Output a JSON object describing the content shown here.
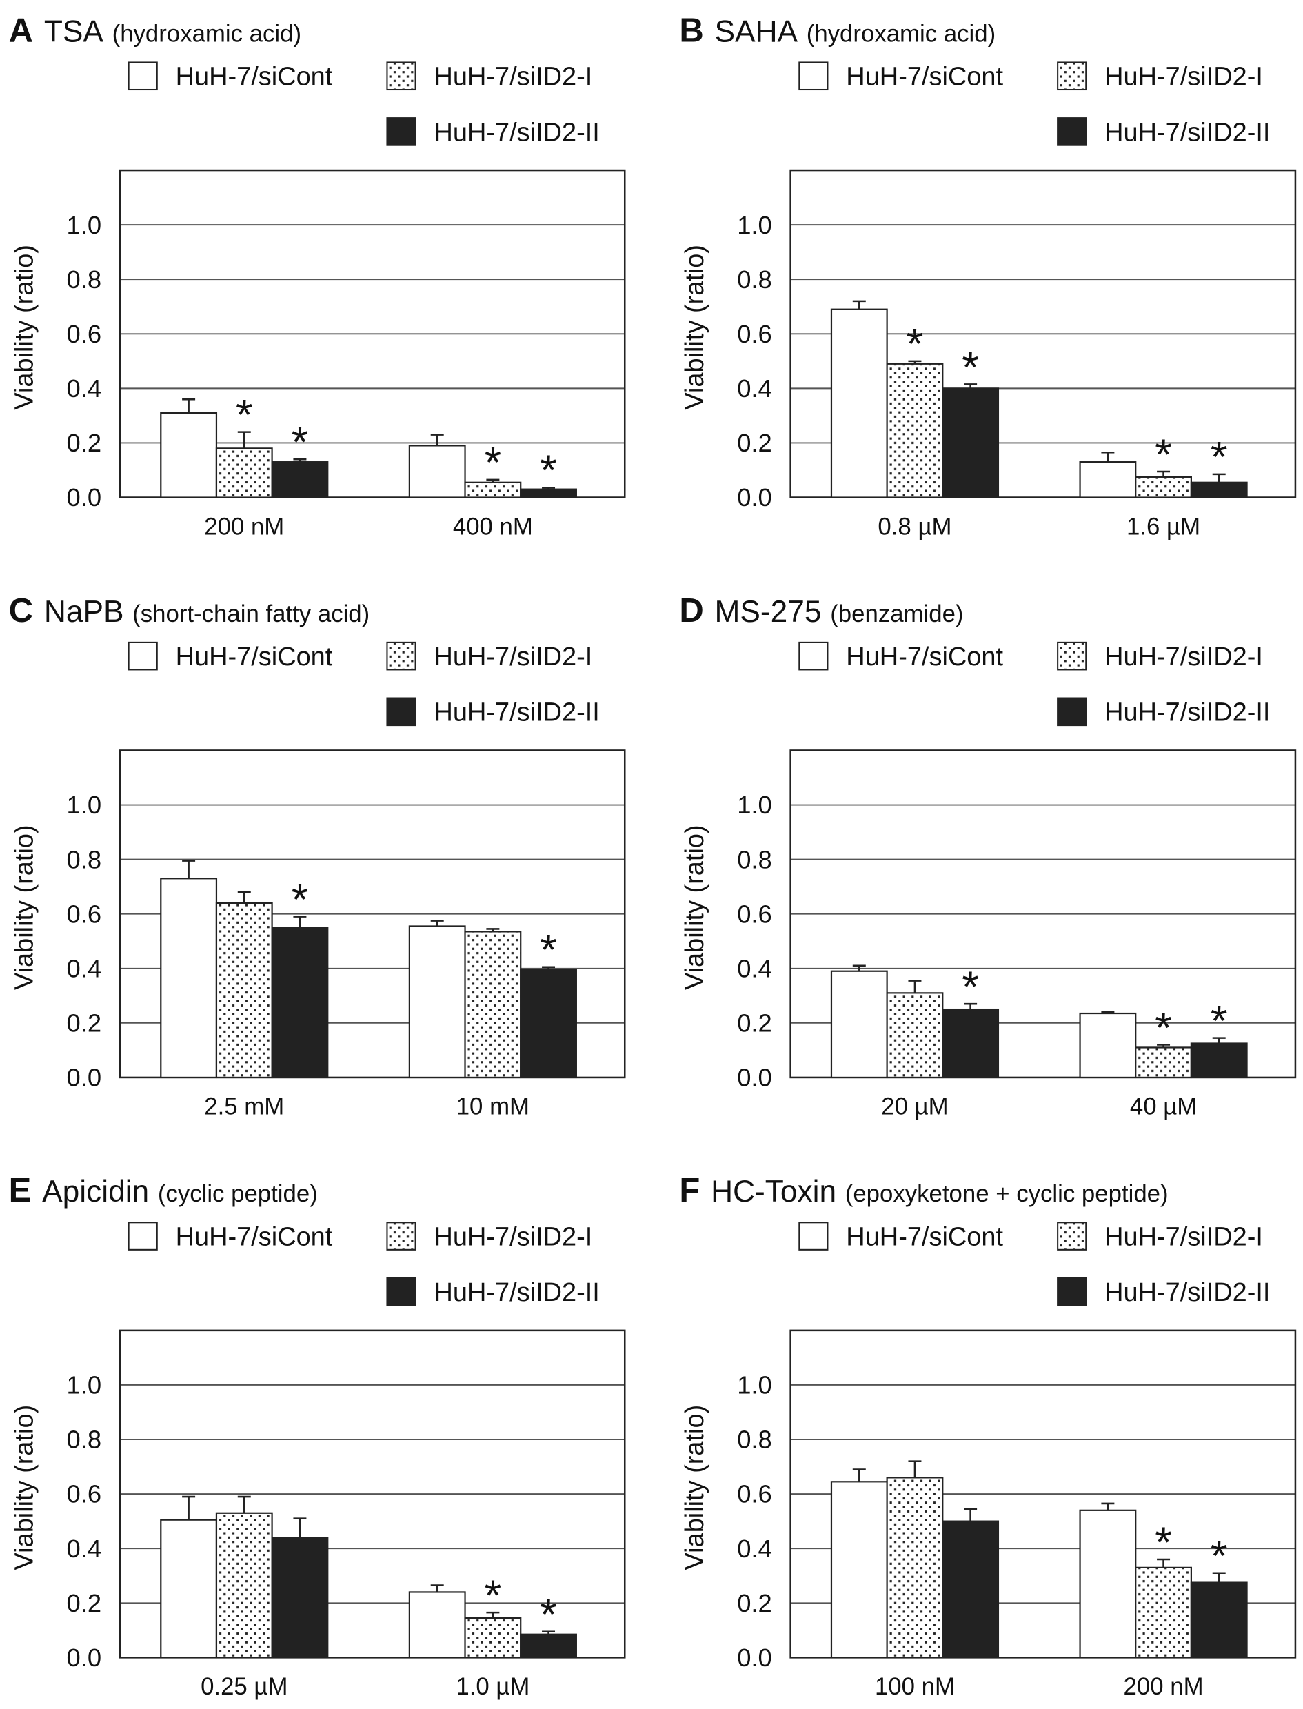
{
  "legend": [
    "HuH-7/siCont",
    "HuH-7/siID2-I",
    "HuH-7/siID2-II"
  ],
  "colors": {
    "siCont": "#ffffff",
    "siID2-I": "dotted",
    "siID2-II": "#222222",
    "axis": "#222222",
    "grid": "#555555"
  },
  "chart_data": [
    {
      "type": "bar",
      "panel": "A",
      "drug": "TSA",
      "class": "(hydroxamic acid)",
      "ylabel": "Viability (ratio)",
      "ylim": [
        0,
        1.2
      ],
      "yticks": [
        "0.0",
        "0.2",
        "0.4",
        "0.6",
        "0.8",
        "1.0"
      ],
      "grid": true,
      "categories": [
        "200 nM",
        "400 nM"
      ],
      "series": [
        {
          "name": "HuH-7/siCont",
          "values": [
            0.31,
            0.19
          ],
          "errors": [
            0.05,
            0.04
          ],
          "significant": [
            false,
            false
          ]
        },
        {
          "name": "HuH-7/siID2-I",
          "values": [
            0.18,
            0.055
          ],
          "errors": [
            0.06,
            0.01
          ],
          "significant": [
            true,
            true
          ]
        },
        {
          "name": "HuH-7/siID2-II",
          "values": [
            0.13,
            0.03
          ],
          "errors": [
            0.01,
            0.006
          ],
          "significant": [
            true,
            true
          ]
        }
      ]
    },
    {
      "type": "bar",
      "panel": "B",
      "drug": "SAHA",
      "class": "(hydroxamic acid)",
      "ylabel": "Viability (ratio)",
      "ylim": [
        0,
        1.2
      ],
      "yticks": [
        "0.0",
        "0.2",
        "0.4",
        "0.6",
        "0.8",
        "1.0"
      ],
      "grid": true,
      "categories": [
        "0.8 µM",
        "1.6 µM"
      ],
      "series": [
        {
          "name": "HuH-7/siCont",
          "values": [
            0.69,
            0.13
          ],
          "errors": [
            0.03,
            0.035
          ],
          "significant": [
            false,
            false
          ]
        },
        {
          "name": "HuH-7/siID2-I",
          "values": [
            0.49,
            0.075
          ],
          "errors": [
            0.01,
            0.02
          ],
          "significant": [
            true,
            true
          ]
        },
        {
          "name": "HuH-7/siID2-II",
          "values": [
            0.4,
            0.055
          ],
          "errors": [
            0.015,
            0.03
          ],
          "significant": [
            true,
            true
          ]
        }
      ]
    },
    {
      "type": "bar",
      "panel": "C",
      "drug": "NaPB",
      "class": "(short-chain fatty acid)",
      "ylabel": "Viability (ratio)",
      "ylim": [
        0,
        1.2
      ],
      "yticks": [
        "0.0",
        "0.2",
        "0.4",
        "0.6",
        "0.8",
        "1.0"
      ],
      "grid": true,
      "categories": [
        "2.5 mM",
        "10 mM"
      ],
      "series": [
        {
          "name": "HuH-7/siCont",
          "values": [
            0.73,
            0.555
          ],
          "errors": [
            0.065,
            0.02
          ],
          "significant": [
            false,
            false
          ]
        },
        {
          "name": "HuH-7/siID2-I",
          "values": [
            0.64,
            0.535
          ],
          "errors": [
            0.04,
            0.01
          ],
          "significant": [
            false,
            false
          ]
        },
        {
          "name": "HuH-7/siID2-II",
          "values": [
            0.55,
            0.395
          ],
          "errors": [
            0.04,
            0.01
          ],
          "significant": [
            true,
            true
          ]
        }
      ]
    },
    {
      "type": "bar",
      "panel": "D",
      "drug": "MS-275",
      "class": "(benzamide)",
      "ylabel": "Viability (ratio)",
      "ylim": [
        0,
        1.2
      ],
      "yticks": [
        "0.0",
        "0.2",
        "0.4",
        "0.6",
        "0.8",
        "1.0"
      ],
      "grid": true,
      "categories": [
        "20 µM",
        "40 µM"
      ],
      "series": [
        {
          "name": "HuH-7/siCont",
          "values": [
            0.39,
            0.235
          ],
          "errors": [
            0.02,
            0.005
          ],
          "significant": [
            false,
            false
          ]
        },
        {
          "name": "HuH-7/siID2-I",
          "values": [
            0.31,
            0.11
          ],
          "errors": [
            0.045,
            0.01
          ],
          "significant": [
            false,
            true
          ]
        },
        {
          "name": "HuH-7/siID2-II",
          "values": [
            0.25,
            0.125
          ],
          "errors": [
            0.02,
            0.02
          ],
          "significant": [
            true,
            true
          ]
        }
      ]
    },
    {
      "type": "bar",
      "panel": "E",
      "drug": "Apicidin",
      "class": "(cyclic peptide)",
      "ylabel": "Viability (ratio)",
      "ylim": [
        0,
        1.2
      ],
      "yticks": [
        "0.0",
        "0.2",
        "0.4",
        "0.6",
        "0.8",
        "1.0"
      ],
      "grid": true,
      "categories": [
        "0.25 µM",
        "1.0 µM"
      ],
      "series": [
        {
          "name": "HuH-7/siCont",
          "values": [
            0.505,
            0.24
          ],
          "errors": [
            0.085,
            0.025
          ],
          "significant": [
            false,
            false
          ]
        },
        {
          "name": "HuH-7/siID2-I",
          "values": [
            0.53,
            0.145
          ],
          "errors": [
            0.06,
            0.02
          ],
          "significant": [
            false,
            true
          ]
        },
        {
          "name": "HuH-7/siID2-II",
          "values": [
            0.44,
            0.085
          ],
          "errors": [
            0.07,
            0.01
          ],
          "significant": [
            false,
            true
          ]
        }
      ]
    },
    {
      "type": "bar",
      "panel": "F",
      "drug": "HC-Toxin",
      "class": "(epoxyketone + cyclic peptide)",
      "ylabel": "Viability (ratio)",
      "ylim": [
        0,
        1.2
      ],
      "yticks": [
        "0.0",
        "0.2",
        "0.4",
        "0.6",
        "0.8",
        "1.0"
      ],
      "grid": true,
      "categories": [
        "100 nM",
        "200 nM"
      ],
      "series": [
        {
          "name": "HuH-7/siCont",
          "values": [
            0.645,
            0.54
          ],
          "errors": [
            0.045,
            0.025
          ],
          "significant": [
            false,
            false
          ]
        },
        {
          "name": "HuH-7/siID2-I",
          "values": [
            0.66,
            0.33
          ],
          "errors": [
            0.06,
            0.03
          ],
          "significant": [
            false,
            true
          ]
        },
        {
          "name": "HuH-7/siID2-II",
          "values": [
            0.5,
            0.275
          ],
          "errors": [
            0.045,
            0.035
          ],
          "significant": [
            false,
            true
          ]
        }
      ]
    }
  ]
}
